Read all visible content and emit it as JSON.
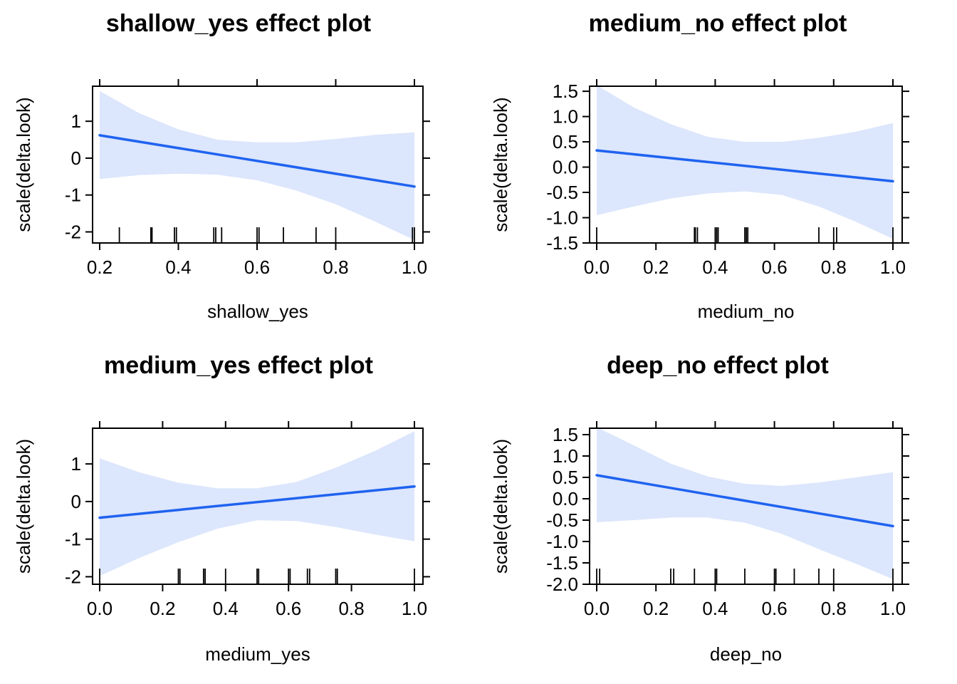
{
  "colors": {
    "fit_line": "#1F63F0",
    "ci_band": "#DCE6FC",
    "axis": "#000000",
    "background": "#FFFFFF"
  },
  "chart_data": [
    {
      "type": "line",
      "title": "shallow_yes effect plot",
      "xlabel": "shallow_yes",
      "ylabel": "scale(delta.look)",
      "xlim": [
        0.2,
        1.0
      ],
      "ylim": [
        -2.3,
        1.95
      ],
      "xticks": [
        0.2,
        0.4,
        0.6,
        0.8,
        1.0
      ],
      "xtick_labels": [
        "0.2",
        "0.4",
        "0.6",
        "0.8",
        "1.0"
      ],
      "yticks": [
        -2,
        -1,
        0,
        1
      ],
      "ytick_labels": [
        "-2",
        "-1",
        "0",
        "1"
      ],
      "top_ticks": [
        0.2,
        0.4,
        0.6,
        0.8,
        1.0
      ],
      "right_ticks": [
        -2,
        -1,
        0,
        1
      ],
      "fit": {
        "x": [
          0.2,
          1.0
        ],
        "y": [
          0.62,
          -0.77
        ]
      },
      "ci": {
        "x": [
          0.2,
          0.3,
          0.4,
          0.5,
          0.6,
          0.7,
          0.8,
          0.9,
          1.0
        ],
        "lower": [
          -0.57,
          -0.46,
          -0.42,
          -0.45,
          -0.6,
          -0.88,
          -1.25,
          -1.72,
          -2.22
        ],
        "upper": [
          1.82,
          1.22,
          0.78,
          0.5,
          0.43,
          0.43,
          0.52,
          0.63,
          0.7
        ]
      },
      "rug": [
        0.25,
        0.33,
        0.333,
        0.39,
        0.395,
        0.49,
        0.495,
        0.51,
        0.6,
        0.605,
        0.667,
        0.75,
        0.8,
        0.995,
        1.0
      ]
    },
    {
      "type": "line",
      "title": "medium_no effect plot",
      "xlabel": "medium_no",
      "ylabel": "scale(delta.look)",
      "xlim": [
        0.0,
        1.0
      ],
      "ylim": [
        -1.5,
        1.6
      ],
      "xticks": [
        0.0,
        0.2,
        0.4,
        0.6,
        0.8,
        1.0
      ],
      "xtick_labels": [
        "0.0",
        "0.2",
        "0.4",
        "0.6",
        "0.8",
        "1.0"
      ],
      "yticks": [
        -1.5,
        -1.0,
        -0.5,
        0.0,
        0.5,
        1.0,
        1.5
      ],
      "ytick_labels": [
        "-1.5",
        "-1.0",
        "-0.5",
        "0.0",
        "0.5",
        "1.0",
        "1.5"
      ],
      "top_ticks": [
        0.0,
        0.2,
        0.4,
        0.6,
        0.8,
        1.0
      ],
      "right_ticks": [
        -1.5,
        -1.0,
        -0.5,
        0.0,
        0.5,
        1.0,
        1.5
      ],
      "fit": {
        "x": [
          0.0,
          1.0
        ],
        "y": [
          0.33,
          -0.28
        ]
      },
      "ci": {
        "x": [
          0.0,
          0.125,
          0.25,
          0.375,
          0.5,
          0.625,
          0.75,
          0.875,
          1.0
        ],
        "lower": [
          -0.95,
          -0.78,
          -0.62,
          -0.52,
          -0.48,
          -0.55,
          -0.78,
          -1.08,
          -1.42
        ],
        "upper": [
          1.62,
          1.18,
          0.85,
          0.6,
          0.5,
          0.5,
          0.58,
          0.7,
          0.87
        ]
      },
      "rug": [
        0.0,
        0.33,
        0.333,
        0.34,
        0.4,
        0.405,
        0.41,
        0.5,
        0.505,
        0.51,
        0.75,
        0.8,
        0.81,
        1.0
      ]
    },
    {
      "type": "line",
      "title": "medium_yes effect plot",
      "xlabel": "medium_yes",
      "ylabel": "scale(delta.look)",
      "xlim": [
        0.0,
        1.0
      ],
      "ylim": [
        -2.2,
        1.95
      ],
      "xticks": [
        0.0,
        0.2,
        0.4,
        0.6,
        0.8,
        1.0
      ],
      "xtick_labels": [
        "0.0",
        "0.2",
        "0.4",
        "0.6",
        "0.8",
        "1.0"
      ],
      "yticks": [
        -2,
        -1,
        0,
        1
      ],
      "ytick_labels": [
        "-2",
        "-1",
        "0",
        "1"
      ],
      "top_ticks": [
        0.0,
        0.2,
        0.4,
        0.6,
        0.8,
        1.0
      ],
      "right_ticks": [
        -2,
        -1,
        0,
        1
      ],
      "fit": {
        "x": [
          0.0,
          1.0
        ],
        "y": [
          -0.43,
          0.4
        ]
      },
      "ci": {
        "x": [
          0.0,
          0.125,
          0.25,
          0.375,
          0.5,
          0.625,
          0.75,
          0.875,
          1.0
        ],
        "lower": [
          -1.98,
          -1.5,
          -1.08,
          -0.72,
          -0.5,
          -0.52,
          -0.68,
          -0.88,
          -1.06
        ],
        "upper": [
          1.15,
          0.78,
          0.5,
          0.35,
          0.35,
          0.52,
          0.9,
          1.35,
          1.87
        ]
      },
      "rug": [
        0.0,
        0.25,
        0.255,
        0.33,
        0.335,
        0.4,
        0.5,
        0.505,
        0.6,
        0.605,
        0.66,
        0.667,
        0.75,
        0.755,
        1.0
      ]
    },
    {
      "type": "line",
      "title": "deep_no effect plot",
      "xlabel": "deep_no",
      "ylabel": "scale(delta.look)",
      "xlim": [
        0.0,
        1.0
      ],
      "ylim": [
        -2.0,
        1.65
      ],
      "xticks": [
        0.0,
        0.2,
        0.4,
        0.6,
        0.8,
        1.0
      ],
      "xtick_labels": [
        "0.0",
        "0.2",
        "0.4",
        "0.6",
        "0.8",
        "1.0"
      ],
      "yticks": [
        -2.0,
        -1.5,
        -1.0,
        -0.5,
        0.0,
        0.5,
        1.0,
        1.5
      ],
      "ytick_labels": [
        "-2.0",
        "-1.5",
        "-1.0",
        "-0.5",
        "0.0",
        "0.5",
        "1.0",
        "1.5"
      ],
      "top_ticks": [
        0.0,
        0.2,
        0.4,
        0.6,
        0.8,
        1.0
      ],
      "right_ticks": [
        -2.0,
        -1.5,
        -1.0,
        -0.5,
        0.0,
        0.5,
        1.0,
        1.5
      ],
      "fit": {
        "x": [
          0.0,
          1.0
        ],
        "y": [
          0.55,
          -0.64
        ]
      },
      "ci": {
        "x": [
          0.0,
          0.125,
          0.25,
          0.375,
          0.5,
          0.625,
          0.75,
          0.875,
          1.0
        ],
        "lower": [
          -0.55,
          -0.5,
          -0.44,
          -0.44,
          -0.56,
          -0.82,
          -1.18,
          -1.52,
          -1.88
        ],
        "upper": [
          1.67,
          1.25,
          0.82,
          0.52,
          0.35,
          0.3,
          0.38,
          0.5,
          0.62
        ]
      },
      "rug": [
        0.0,
        0.01,
        0.25,
        0.26,
        0.33,
        0.4,
        0.405,
        0.5,
        0.6,
        0.605,
        0.667,
        0.75,
        0.8,
        1.0
      ]
    }
  ]
}
